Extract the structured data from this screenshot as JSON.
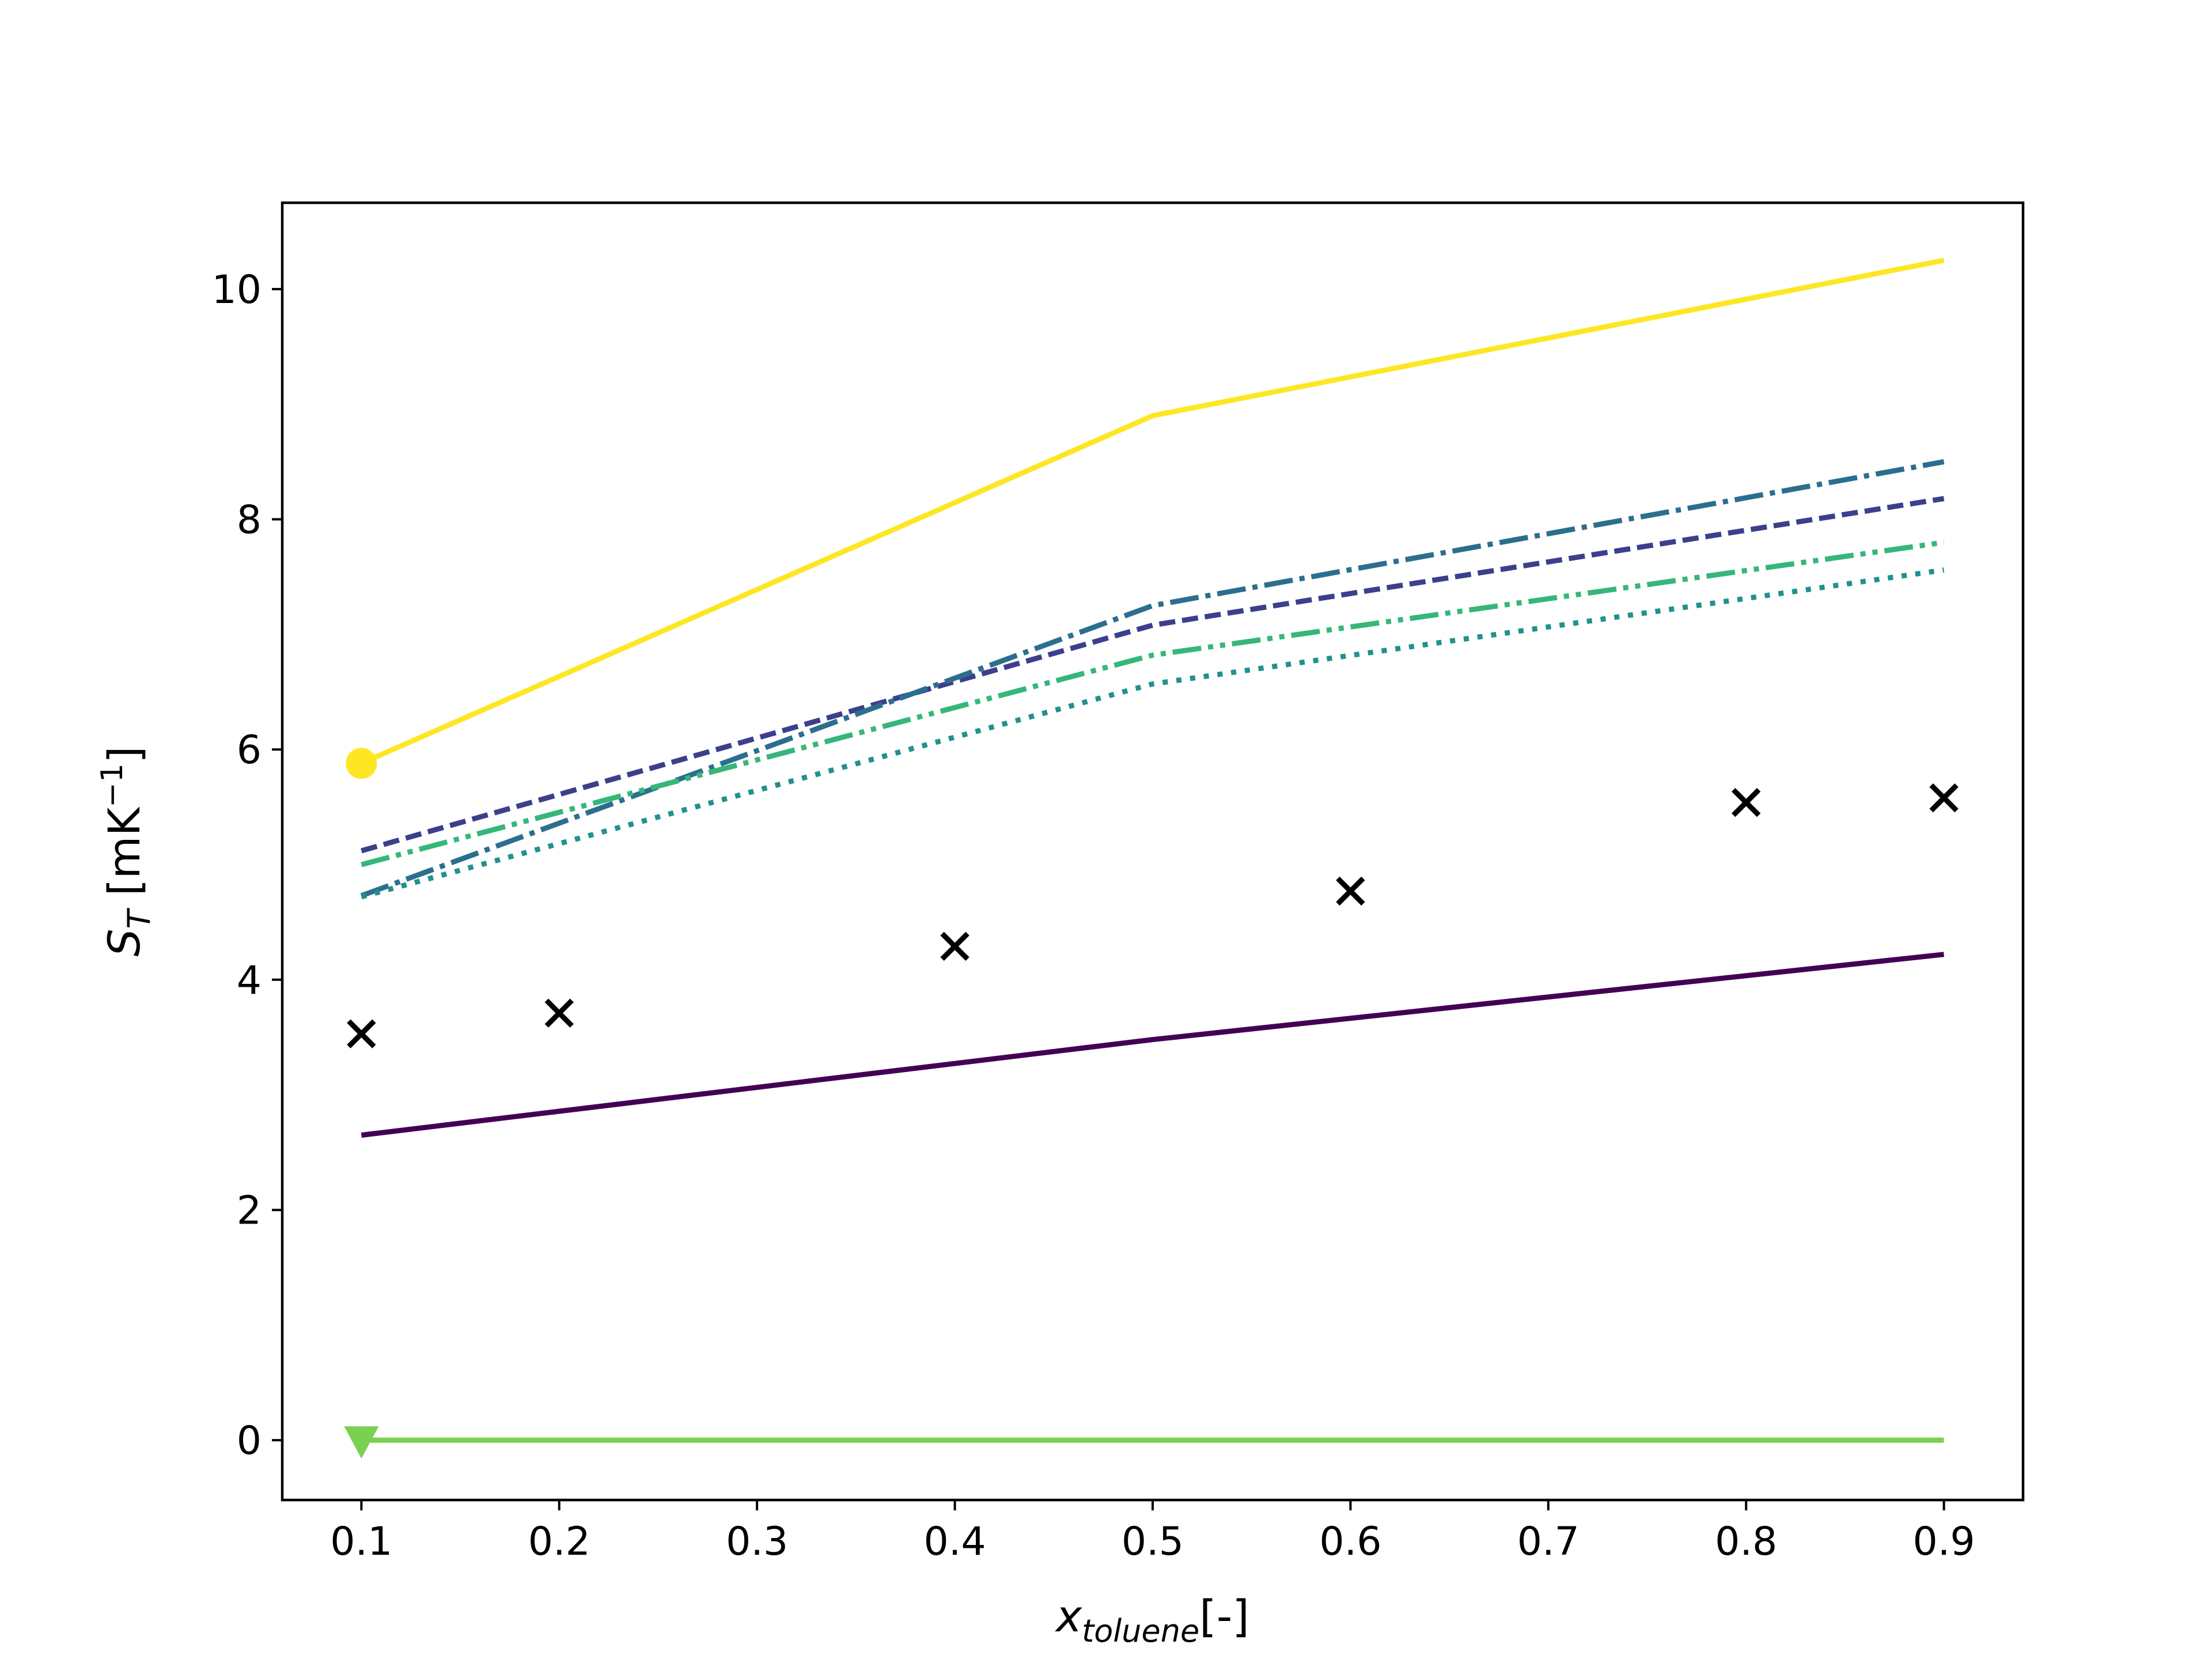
{
  "chart_data": {
    "type": "line",
    "xlabel": "x_toluene[-]",
    "ylabel": "S_T [mK^-1]",
    "xlabel_parts": {
      "main": "x",
      "sub": "toluene",
      "tail": "[-]"
    },
    "ylabel_parts": {
      "main": "S",
      "sub": "T",
      "unit_open": " [mK",
      "sup": "−1",
      "unit_close": "]"
    },
    "xlim": [
      0.06,
      0.94
    ],
    "ylim": [
      -0.52,
      10.75
    ],
    "xticks": [
      0.1,
      0.2,
      0.3,
      0.4,
      0.5,
      0.6,
      0.7,
      0.8,
      0.9
    ],
    "xtick_labels": [
      "0.1",
      "0.2",
      "0.3",
      "0.4",
      "0.5",
      "0.6",
      "0.7",
      "0.8",
      "0.9"
    ],
    "yticks": [
      0,
      2,
      4,
      6,
      8,
      10
    ],
    "ytick_labels": [
      "0",
      "2",
      "4",
      "6",
      "8",
      "10"
    ],
    "grid": false,
    "series": [
      {
        "x": [
          0.1,
          0.5,
          0.9
        ],
        "y": [
          2.65,
          3.48,
          4.22
        ],
        "color": "#440154",
        "linestyle": "solid"
      },
      {
        "x": [
          0.1,
          0.5,
          0.9
        ],
        "y": [
          5.12,
          7.08,
          8.18
        ],
        "color": "#3b3f8c",
        "linestyle": "dashed"
      },
      {
        "x": [
          0.1,
          0.5,
          0.9
        ],
        "y": [
          4.73,
          7.25,
          8.5
        ],
        "color": "#2c6e8e",
        "linestyle": "dashdot"
      },
      {
        "x": [
          0.1,
          0.5,
          0.9
        ],
        "y": [
          4.72,
          6.57,
          7.56
        ],
        "color": "#21918c",
        "linestyle": "dotted"
      },
      {
        "x": [
          0.1,
          0.5,
          0.9
        ],
        "y": [
          5.0,
          6.82,
          7.8
        ],
        "color": "#35b779",
        "linestyle": "dashdotdot"
      },
      {
        "x": [
          0.1,
          0.5,
          0.9
        ],
        "y": [
          0.0,
          0.0,
          0.0
        ],
        "color": "#7ad151",
        "linestyle": "solid",
        "marker_first": "triangle-down"
      },
      {
        "x": [
          0.1,
          0.5,
          0.9
        ],
        "y": [
          5.88,
          8.9,
          10.25
        ],
        "color": "#fde725",
        "linestyle": "solid",
        "marker_first": "circle"
      }
    ],
    "scatter": {
      "marker": "x",
      "color": "#000000",
      "x": [
        0.1,
        0.2,
        0.4,
        0.6,
        0.8,
        0.9
      ],
      "y": [
        3.53,
        3.71,
        4.29,
        4.77,
        5.54,
        5.58
      ]
    }
  }
}
